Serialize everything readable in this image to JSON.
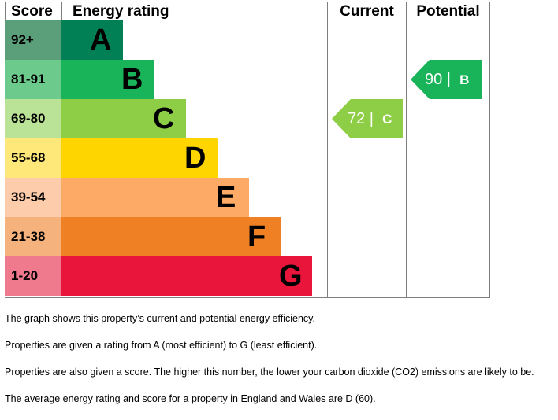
{
  "headers": {
    "score": "Score",
    "rating": "Energy rating",
    "current": "Current",
    "potential": "Potential"
  },
  "chart_data": {
    "type": "bar",
    "bands": [
      {
        "letter": "A",
        "score_range": "92+",
        "color": "#008054",
        "score_color": "#5a9e7a"
      },
      {
        "letter": "B",
        "score_range": "81-91",
        "color": "#19b459",
        "score_color": "#6ccb8c"
      },
      {
        "letter": "C",
        "score_range": "69-80",
        "color": "#8dce46",
        "score_color": "#bbe397"
      },
      {
        "letter": "D",
        "score_range": "55-68",
        "color": "#ffd500",
        "score_color": "#ffe87a"
      },
      {
        "letter": "E",
        "score_range": "39-54",
        "color": "#fcaa65",
        "score_color": "#fdccaa"
      },
      {
        "letter": "F",
        "score_range": "21-38",
        "color": "#ef8023",
        "score_color": "#f5b27c"
      },
      {
        "letter": "G",
        "score_range": "1-20",
        "color": "#e9153b",
        "score_color": "#f07a8d"
      }
    ],
    "current": {
      "score": "72",
      "letter": "C",
      "color": "#8dce46"
    },
    "potential": {
      "score": "90",
      "letter": "B",
      "color": "#19b459"
    }
  },
  "notes": [
    "The graph shows this property’s current and potential energy efficiency.",
    "Properties are given a rating from A (most efficient) to G (least efficient).",
    "Properties are also given a score. The higher this number, the lower your carbon dioxide (CO2) emissions are likely to be.",
    "The average energy rating and score for a property in England and Wales are D (60)."
  ]
}
